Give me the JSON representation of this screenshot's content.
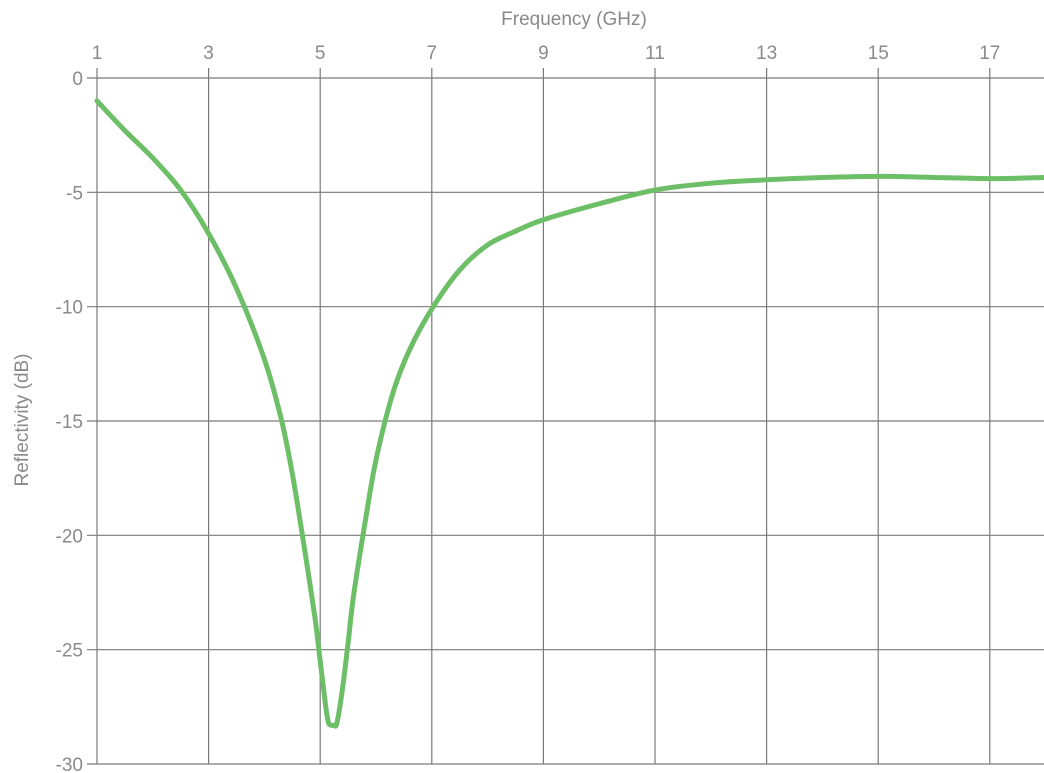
{
  "chart_data": {
    "type": "line",
    "title": "",
    "xlabel": "Frequency (GHz)",
    "ylabel": "Reflectivity (dB)",
    "xlim": [
      1,
      18
    ],
    "ylim": [
      -30,
      0
    ],
    "x_ticks": [
      1,
      3,
      5,
      7,
      9,
      11,
      13,
      15,
      17
    ],
    "y_ticks": [
      0,
      -5,
      -10,
      -15,
      -20,
      -25,
      -30
    ],
    "x_tick_labels": [
      "1",
      "3",
      "5",
      "7",
      "9",
      "11",
      "13",
      "15",
      "17"
    ],
    "y_tick_labels": [
      "0",
      "-5",
      "-10",
      "-15",
      "-20",
      "-25",
      "-30"
    ],
    "x_axis_position": "top",
    "grid": true,
    "line_color": "#6dbf67",
    "grid_color": "#7a7a7a",
    "text_color": "#8a8a8a",
    "series": [
      {
        "x": [
          1.0,
          1.5,
          2.0,
          2.5,
          3.0,
          3.5,
          4.0,
          4.3,
          4.5,
          4.7,
          4.9,
          5.0,
          5.1,
          5.15,
          5.2,
          5.25,
          5.3,
          5.4,
          5.5,
          5.6,
          5.8,
          6.0,
          6.3,
          6.6,
          7.0,
          7.5,
          8.0,
          8.5,
          9.0,
          10.0,
          11.0,
          12.0,
          13.0,
          14.0,
          15.0,
          16.0,
          17.0,
          18.0
        ],
        "y": [
          -1.0,
          -2.3,
          -3.5,
          -4.9,
          -6.8,
          -9.2,
          -12.3,
          -14.9,
          -17.3,
          -20.3,
          -23.5,
          -25.5,
          -27.5,
          -28.2,
          -28.3,
          -28.3,
          -28.2,
          -26.7,
          -24.7,
          -22.6,
          -19.5,
          -16.7,
          -13.8,
          -11.9,
          -10.1,
          -8.4,
          -7.3,
          -6.7,
          -6.2,
          -5.5,
          -4.9,
          -4.6,
          -4.45,
          -4.35,
          -4.3,
          -4.35,
          -4.4,
          -4.35
        ]
      }
    ]
  }
}
